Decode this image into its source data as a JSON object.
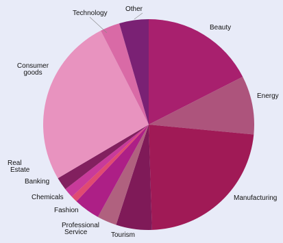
{
  "chart_data": {
    "type": "pie",
    "title": "",
    "start_angle_deg": 0,
    "direction": "clockwise",
    "legend": "none",
    "slices": [
      {
        "label": "Beauty",
        "value": 17.5,
        "color": "#a8206e"
      },
      {
        "label": "Energy",
        "value": 9.0,
        "color": "#ad547c"
      },
      {
        "label": "Manufacturing",
        "value": 23.0,
        "color": "#a01a56"
      },
      {
        "label": "Tourism",
        "value": 5.5,
        "color": "#7f1a58"
      },
      {
        "label": "Professional Service",
        "value": 3.0,
        "color": "#b0617f"
      },
      {
        "label": "Fashion",
        "value": 4.0,
        "color": "#ad1f86"
      },
      {
        "label": "Chemicals",
        "value": 1.0,
        "color": "#e04a72"
      },
      {
        "label": "Banking",
        "value": 1.5,
        "color": "#c83a9a"
      },
      {
        "label": "Real Estate",
        "value": 2.0,
        "color": "#82205f"
      },
      {
        "label": "Consumer goods",
        "value": 26.0,
        "color": "#e893bf"
      },
      {
        "label": "Technology",
        "value": 3.0,
        "color": "#d96aa6"
      },
      {
        "label": "Other",
        "value": 4.5,
        "color": "#7a2174"
      }
    ]
  }
}
